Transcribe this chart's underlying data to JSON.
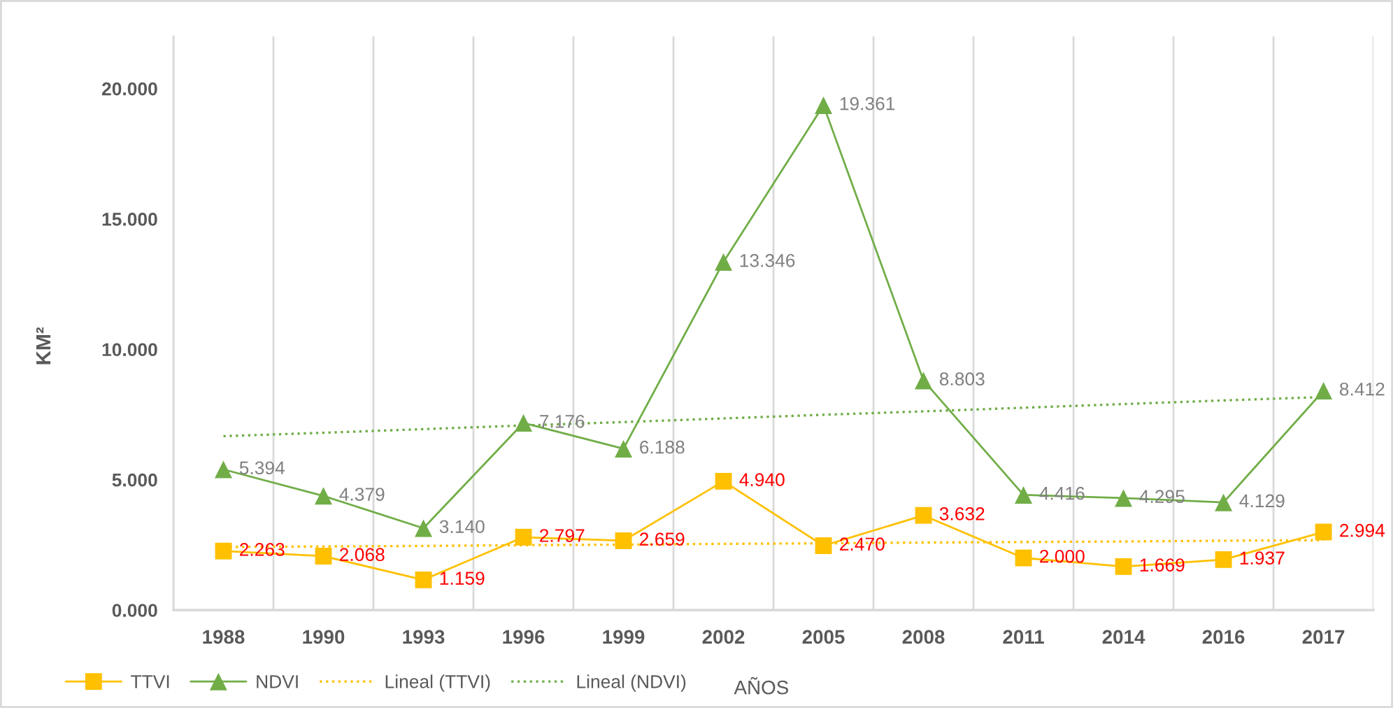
{
  "chart_data": {
    "type": "line",
    "categories": [
      "1988",
      "1990",
      "1993",
      "1996",
      "1999",
      "2002",
      "2005",
      "2008",
      "2011",
      "2014",
      "2016",
      "2017"
    ],
    "series": [
      {
        "name": "TTVI",
        "color": "#ffc000",
        "marker": "square",
        "line_style": "solid",
        "values": [
          2.263,
          2.068,
          1.159,
          2.797,
          2.659,
          4.94,
          2.47,
          3.632,
          2.0,
          1.669,
          1.937,
          2.994
        ],
        "value_labels": [
          "2.263",
          "2.068",
          "1.159",
          "2.797",
          "2.659",
          "4.940",
          "2.470",
          "3.632",
          "2.000",
          "1.669",
          "1.937",
          "2.994"
        ]
      },
      {
        "name": "NDVI",
        "color": "#70ad47",
        "marker": "triangle",
        "line_style": "solid",
        "values": [
          5.394,
          4.379,
          3.14,
          7.176,
          6.188,
          13.346,
          19.361,
          8.803,
          4.416,
          4.295,
          4.129,
          8.412
        ],
        "value_labels": [
          "5.394",
          "4.379",
          "3.140",
          "7.176",
          "6.188",
          "13.346",
          "19.361",
          "8.803",
          "4.416",
          "4.295",
          "4.129",
          "8.412"
        ]
      },
      {
        "name": "Lineal (TTVI)",
        "color": "#ffc000",
        "marker": "none",
        "line_style": "dotted",
        "values": [
          2.42,
          2.44,
          2.46,
          2.49,
          2.51,
          2.54,
          2.56,
          2.59,
          2.61,
          2.63,
          2.66,
          2.68
        ]
      },
      {
        "name": "Lineal (NDVI)",
        "color": "#70ad47",
        "marker": "none",
        "line_style": "dotted",
        "values": [
          6.67,
          6.8,
          6.94,
          7.08,
          7.21,
          7.35,
          7.49,
          7.62,
          7.76,
          7.9,
          8.04,
          8.17
        ]
      }
    ],
    "xlabel": "AÑOS",
    "ylabel": "KM²",
    "ylim": [
      0,
      22
    ],
    "yticks": [
      {
        "value": 0,
        "label": "0.000"
      },
      {
        "value": 5,
        "label": "5.000"
      },
      {
        "value": 10,
        "label": "10.000"
      },
      {
        "value": 15,
        "label": "15.000"
      },
      {
        "value": 20,
        "label": "20.000"
      }
    ],
    "grid": "x",
    "legend": "bottom"
  }
}
